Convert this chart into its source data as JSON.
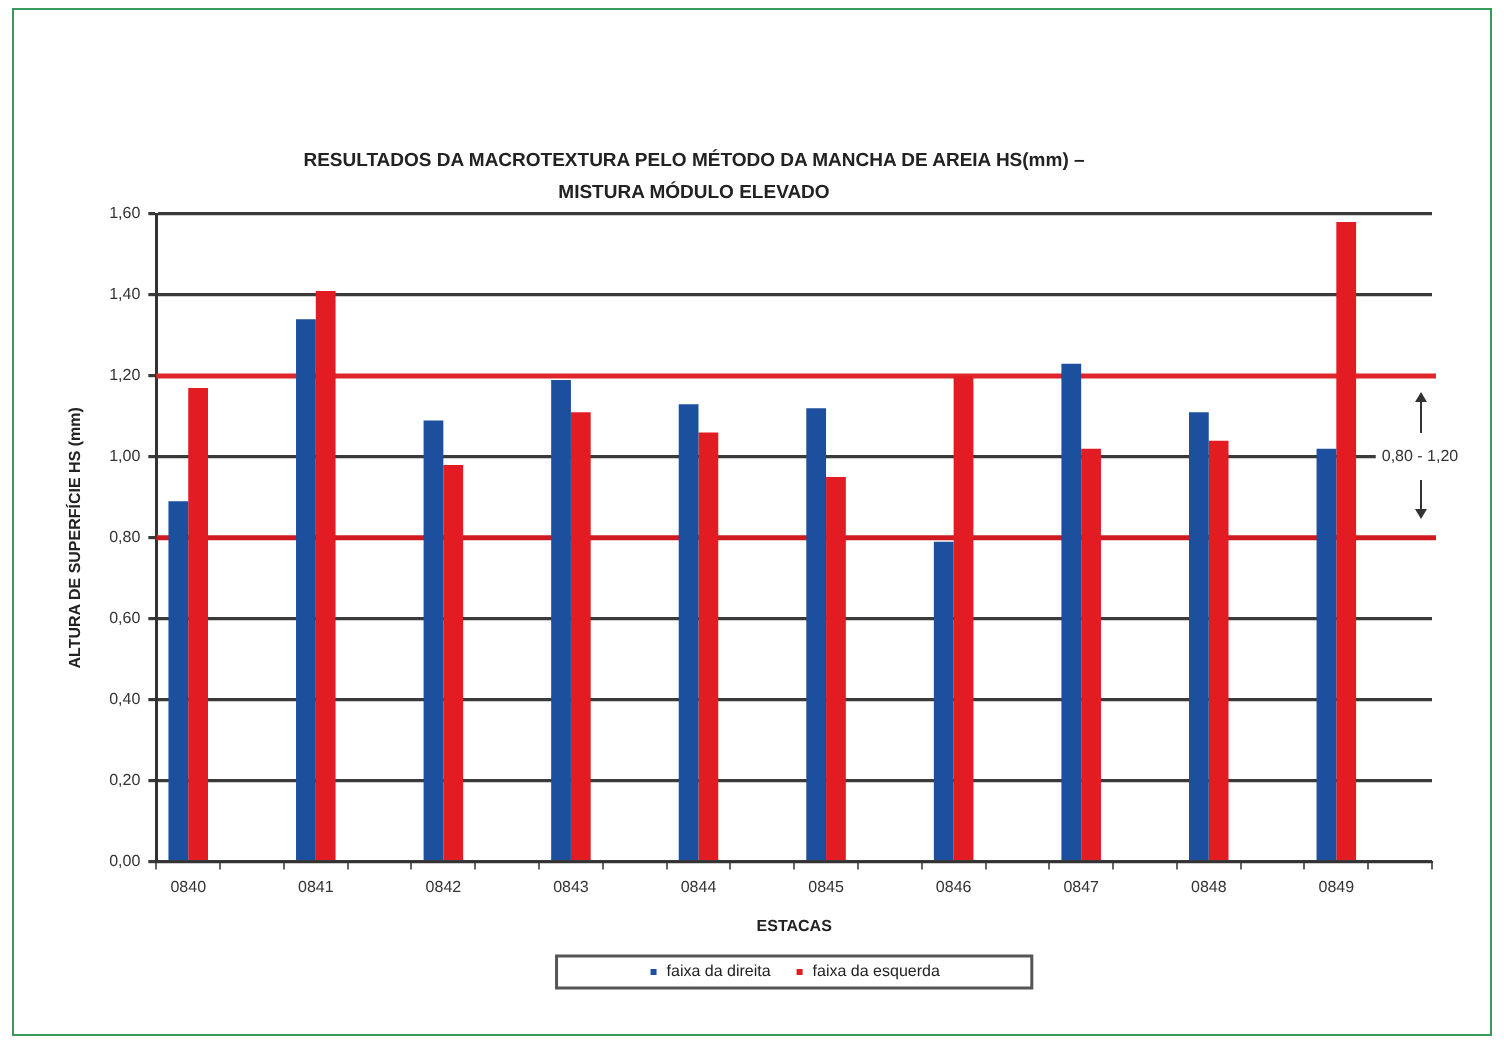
{
  "chart_data": {
    "type": "bar",
    "title": "RESULTADOS DA MACROTEXTURA PELO MÉTODO DA MANCHA DE AREIA HS(mm) –\nMISTURA MÓDULO ELEVADO",
    "xlabel": "ESTACAS",
    "ylabel": "ALTURA DE SUPERFÍCIE HS (mm)",
    "categories": [
      "0840",
      null,
      "0841",
      null,
      "0842",
      null,
      "0843",
      null,
      "0844",
      null,
      "0845",
      null,
      "0846",
      null,
      "0847",
      null,
      "0848",
      null,
      "0849",
      null
    ],
    "series": [
      {
        "name": "faixa da direita",
        "color": "#1c4f9e",
        "values": [
          0.89,
          null,
          1.34,
          null,
          1.09,
          null,
          1.19,
          null,
          1.13,
          null,
          1.12,
          null,
          0.79,
          null,
          1.23,
          null,
          1.11,
          null,
          1.02,
          null
        ]
      },
      {
        "name": "faixa da esquerda",
        "color": "#e31b23",
        "values": [
          1.17,
          null,
          1.41,
          null,
          0.98,
          null,
          1.11,
          null,
          1.06,
          null,
          0.95,
          null,
          1.2,
          null,
          1.02,
          null,
          1.04,
          null,
          1.58,
          null
        ]
      }
    ],
    "ylim": [
      0,
      1.6
    ],
    "yticks": [
      {
        "value": 0,
        "label": "0,00"
      },
      {
        "value": 0.2,
        "label": "0,20"
      },
      {
        "value": 0.4,
        "label": "0,40"
      },
      {
        "value": 0.6,
        "label": "0,60"
      },
      {
        "value": 0.8,
        "label": "0,80"
      },
      {
        "value": 1.0,
        "label": "1,00"
      },
      {
        "value": 1.2,
        "label": "1,20"
      },
      {
        "value": 1.4,
        "label": "1,40"
      },
      {
        "value": 1.6,
        "label": "1,60"
      }
    ],
    "grid": "y",
    "legend": "bottom",
    "ref_lines": [
      {
        "axis": "y",
        "value": 1.2,
        "color": "#e0262b"
      },
      {
        "axis": "y",
        "value": 0.8,
        "color": "#d11a20"
      }
    ],
    "annotations": [
      "0,80 - 1,20"
    ]
  }
}
